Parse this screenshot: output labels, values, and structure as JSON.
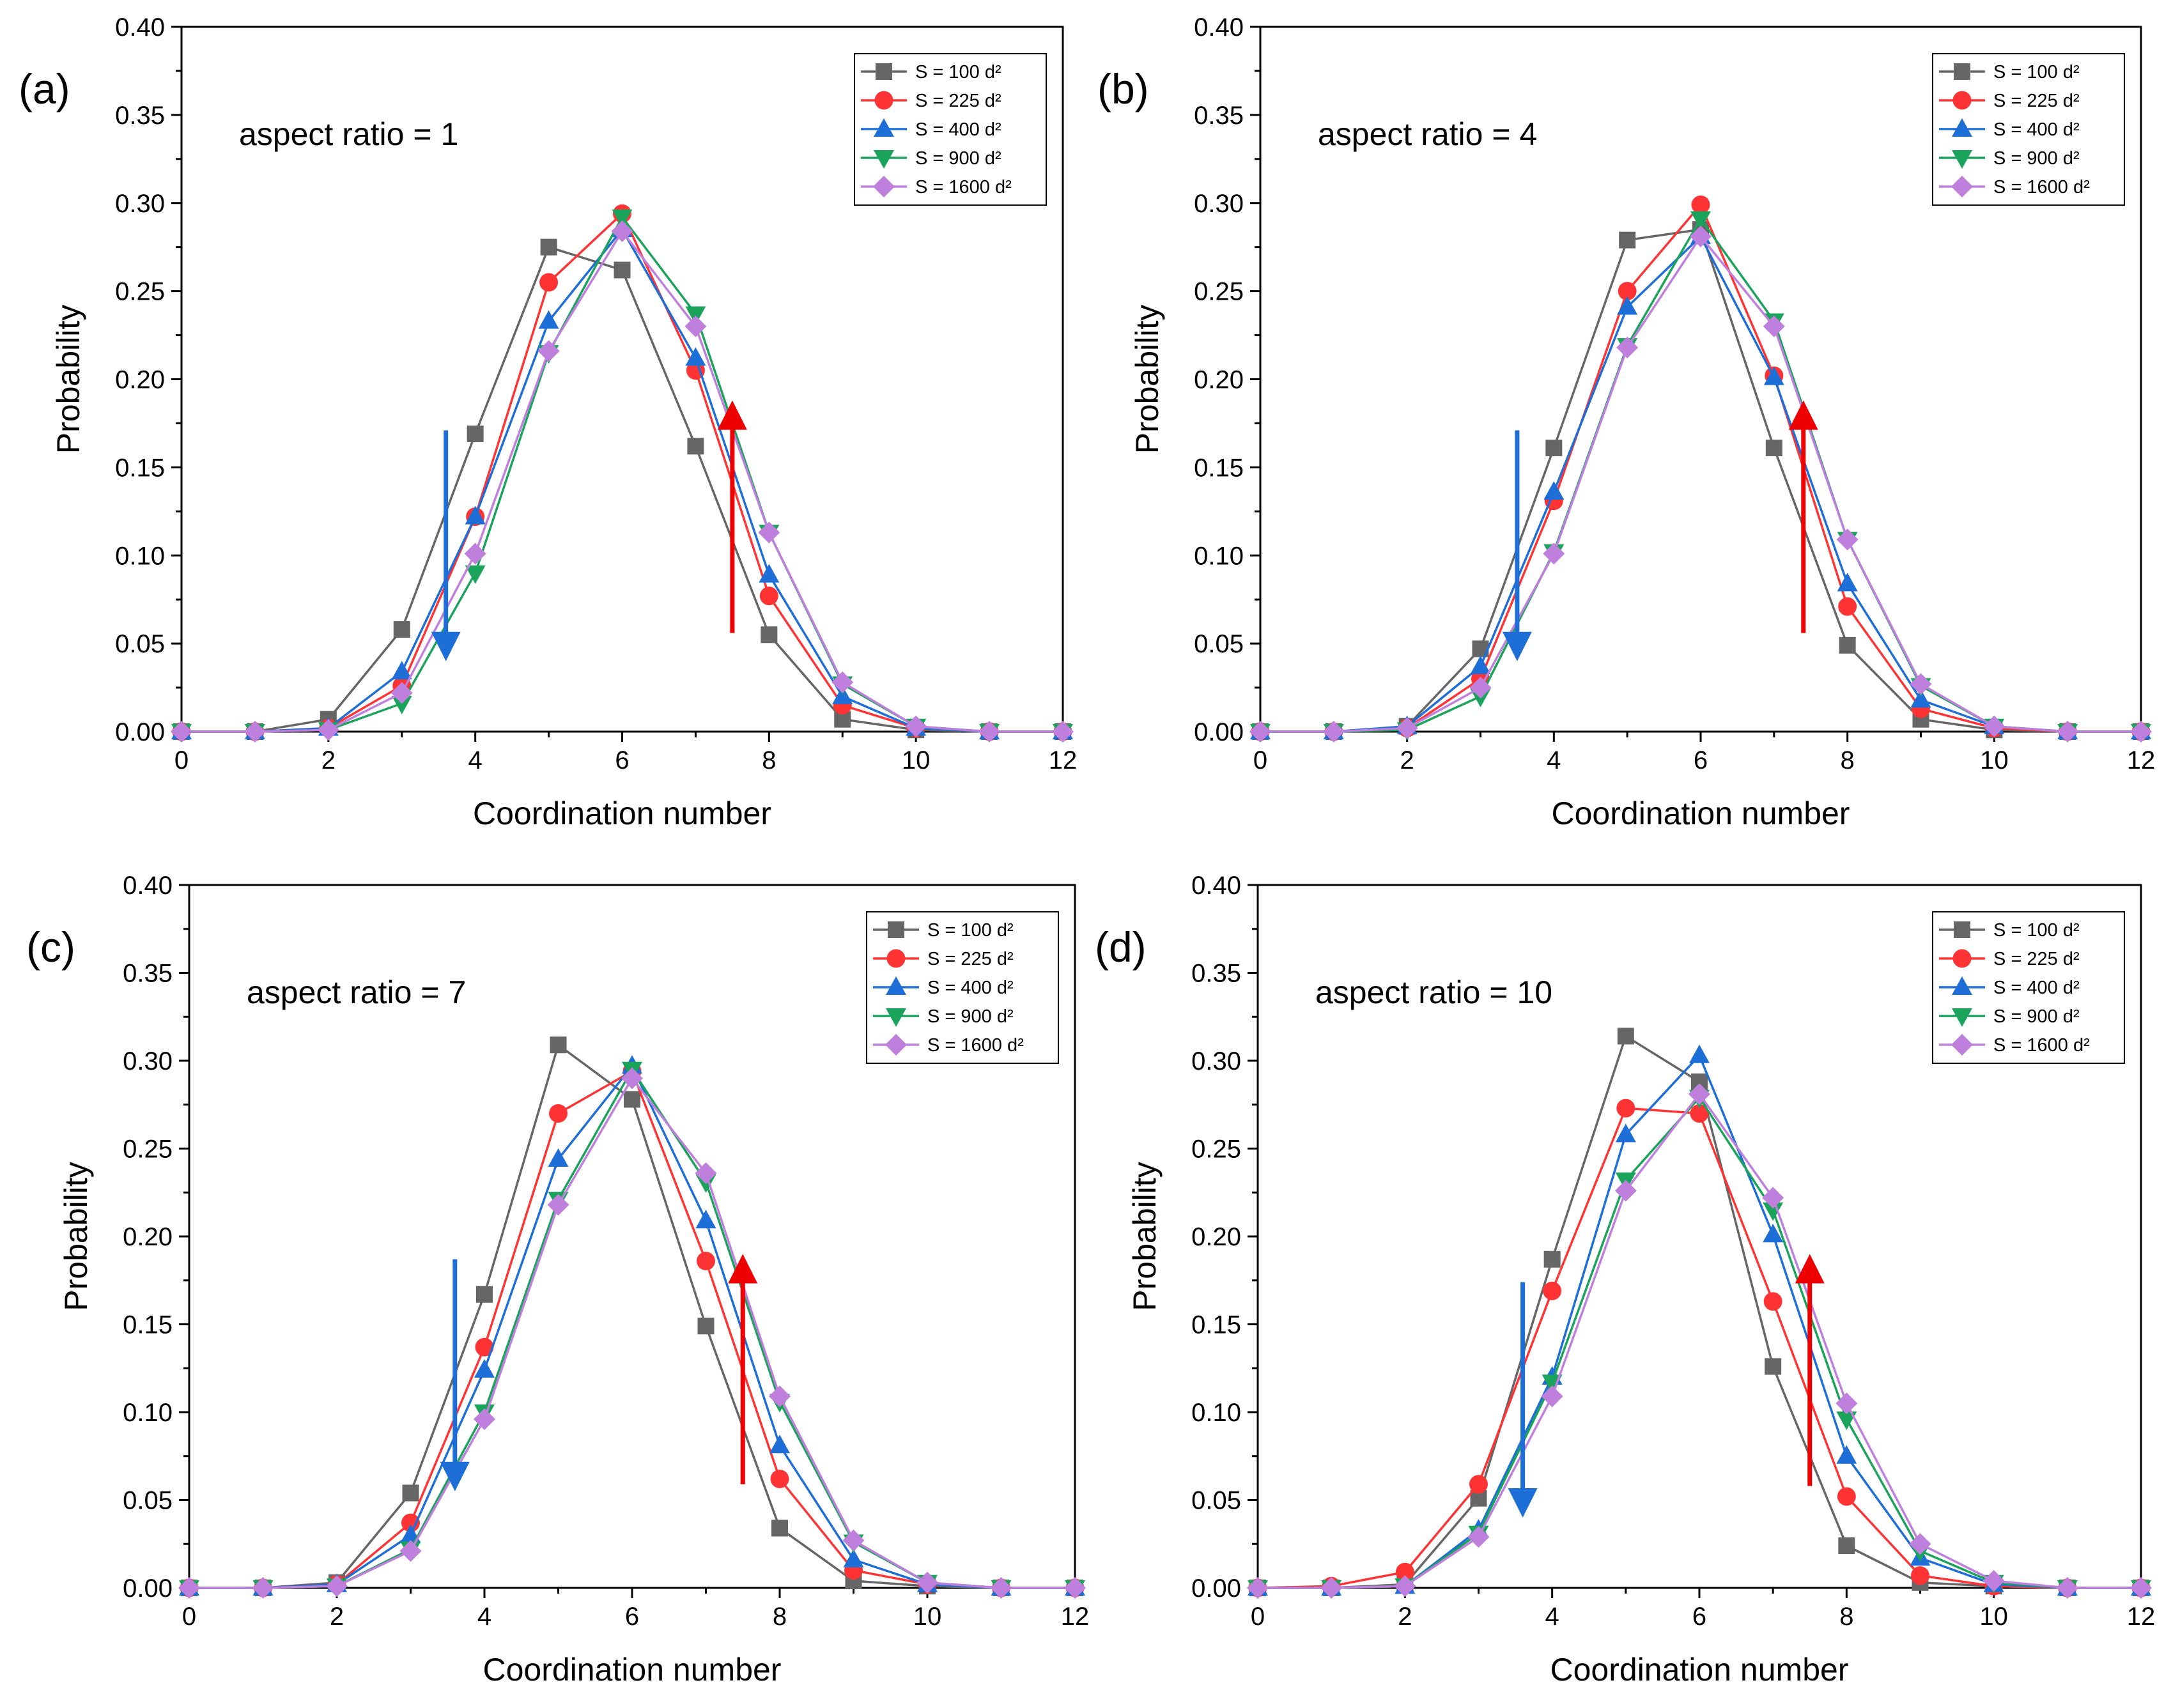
{
  "chart_data": [
    {
      "type": "line",
      "panel_label": "(a)",
      "annotation": "aspect ratio = 1",
      "xlabel": "Coordination number",
      "ylabel": "Probability",
      "xlim": [
        0,
        12
      ],
      "ylim": [
        0,
        0.4
      ],
      "x_ticks": [
        "0",
        "2",
        "4",
        "6",
        "8",
        "10",
        "12"
      ],
      "y_ticks": [
        "0.00",
        "0.05",
        "0.10",
        "0.15",
        "0.20",
        "0.25",
        "0.30",
        "0.35",
        "0.40"
      ],
      "x": [
        0,
        1,
        2,
        3,
        4,
        5,
        6,
        7,
        8,
        9,
        10,
        11,
        12
      ],
      "legend_position": "top-right",
      "series": [
        {
          "name": "S = 100 d²",
          "color": "#666666",
          "marker": "square",
          "values": [
            0,
            0,
            0.007,
            0.058,
            0.169,
            0.275,
            0.262,
            0.162,
            0.055,
            0.007,
            0.001,
            0,
            0
          ]
        },
        {
          "name": "S = 225 d²",
          "color": "#ff3333",
          "marker": "circle",
          "values": [
            0,
            0,
            0.002,
            0.026,
            0.122,
            0.255,
            0.294,
            0.205,
            0.077,
            0.015,
            0.002,
            0,
            0
          ]
        },
        {
          "name": "S = 400 d²",
          "color": "#1e6ed8",
          "marker": "triangle-up",
          "values": [
            0,
            0,
            0.002,
            0.034,
            0.122,
            0.233,
            0.285,
            0.212,
            0.089,
            0.02,
            0.002,
            0,
            0
          ]
        },
        {
          "name": "S = 900 d²",
          "color": "#1aa35b",
          "marker": "triangle-down",
          "values": [
            0,
            0,
            0.001,
            0.016,
            0.09,
            0.215,
            0.292,
            0.237,
            0.113,
            0.027,
            0.003,
            0,
            0
          ]
        },
        {
          "name": "S = 1600 d²",
          "color": "#bf7fdd",
          "marker": "diamond",
          "values": [
            0,
            0,
            0.001,
            0.022,
            0.101,
            0.216,
            0.284,
            0.23,
            0.113,
            0.028,
            0.003,
            0,
            0
          ]
        }
      ],
      "arrows": [
        {
          "direction": "down",
          "color": "#1e6ed8",
          "x": 3.6,
          "y_from": 0.171,
          "y_to": 0.04
        },
        {
          "direction": "up",
          "color": "#ee0000",
          "x": 7.5,
          "y_from": 0.056,
          "y_to": 0.188
        }
      ]
    },
    {
      "type": "line",
      "panel_label": "(b)",
      "annotation": "aspect ratio = 4",
      "xlabel": "Coordination number",
      "ylabel": "Probability",
      "xlim": [
        0,
        12
      ],
      "ylim": [
        0,
        0.4
      ],
      "x_ticks": [
        "0",
        "2",
        "4",
        "6",
        "8",
        "10",
        "12"
      ],
      "y_ticks": [
        "0.00",
        "0.05",
        "0.10",
        "0.15",
        "0.20",
        "0.25",
        "0.30",
        "0.35",
        "0.40"
      ],
      "x": [
        0,
        1,
        2,
        3,
        4,
        5,
        6,
        7,
        8,
        9,
        10,
        11,
        12
      ],
      "legend_position": "top-right",
      "series": [
        {
          "name": "S = 100 d²",
          "color": "#666666",
          "marker": "square",
          "values": [
            0,
            0,
            0.003,
            0.047,
            0.161,
            0.279,
            0.285,
            0.161,
            0.049,
            0.007,
            0.001,
            0,
            0
          ]
        },
        {
          "name": "S = 225 d²",
          "color": "#ff3333",
          "marker": "circle",
          "values": [
            0,
            0,
            0.002,
            0.03,
            0.131,
            0.25,
            0.299,
            0.202,
            0.071,
            0.013,
            0.002,
            0,
            0
          ]
        },
        {
          "name": "S = 400 d²",
          "color": "#1e6ed8",
          "marker": "triangle-up",
          "values": [
            0,
            0,
            0.003,
            0.037,
            0.136,
            0.241,
            0.281,
            0.201,
            0.084,
            0.018,
            0.003,
            0,
            0
          ]
        },
        {
          "name": "S = 900 d²",
          "color": "#1aa35b",
          "marker": "triangle-down",
          "values": [
            0,
            0,
            0.001,
            0.02,
            0.102,
            0.219,
            0.291,
            0.233,
            0.109,
            0.026,
            0.003,
            0,
            0
          ]
        },
        {
          "name": "S = 1600 d²",
          "color": "#bf7fdd",
          "marker": "diamond",
          "values": [
            0,
            0,
            0.002,
            0.025,
            0.101,
            0.218,
            0.281,
            0.23,
            0.109,
            0.027,
            0.003,
            0,
            0
          ]
        }
      ],
      "arrows": [
        {
          "direction": "down",
          "color": "#1e6ed8",
          "x": 3.5,
          "y_from": 0.171,
          "y_to": 0.04
        },
        {
          "direction": "up",
          "color": "#ee0000",
          "x": 7.4,
          "y_from": 0.056,
          "y_to": 0.188
        }
      ]
    },
    {
      "type": "line",
      "panel_label": "(c)",
      "annotation": "aspect ratio = 7",
      "xlabel": "Coordination number",
      "ylabel": "Probability",
      "xlim": [
        0,
        12
      ],
      "ylim": [
        0,
        0.4
      ],
      "x_ticks": [
        "0",
        "2",
        "4",
        "6",
        "8",
        "10",
        "12"
      ],
      "y_ticks": [
        "0.00",
        "0.05",
        "0.10",
        "0.15",
        "0.20",
        "0.25",
        "0.30",
        "0.35",
        "0.40"
      ],
      "x": [
        0,
        1,
        2,
        3,
        4,
        5,
        6,
        7,
        8,
        9,
        10,
        11,
        12
      ],
      "legend_position": "top-right",
      "series": [
        {
          "name": "S = 100 d²",
          "color": "#666666",
          "marker": "square",
          "values": [
            0,
            0,
            0.003,
            0.054,
            0.167,
            0.309,
            0.278,
            0.149,
            0.034,
            0.004,
            0.001,
            0,
            0
          ]
        },
        {
          "name": "S = 225 d²",
          "color": "#ff3333",
          "marker": "circle",
          "values": [
            0,
            0,
            0.002,
            0.037,
            0.137,
            0.27,
            0.294,
            0.186,
            0.062,
            0.01,
            0.002,
            0,
            0
          ]
        },
        {
          "name": "S = 400 d²",
          "color": "#1e6ed8",
          "marker": "triangle-up",
          "values": [
            0,
            0,
            0.002,
            0.03,
            0.124,
            0.244,
            0.297,
            0.209,
            0.081,
            0.016,
            0.002,
            0,
            0
          ]
        },
        {
          "name": "S = 900 d²",
          "color": "#1aa35b",
          "marker": "triangle-down",
          "values": [
            0,
            0,
            0.001,
            0.022,
            0.1,
            0.221,
            0.295,
            0.231,
            0.106,
            0.026,
            0.003,
            0,
            0
          ]
        },
        {
          "name": "S = 1600 d²",
          "color": "#bf7fdd",
          "marker": "diamond",
          "values": [
            0,
            0,
            0.001,
            0.021,
            0.096,
            0.218,
            0.29,
            0.236,
            0.109,
            0.027,
            0.003,
            0,
            0
          ]
        }
      ],
      "arrows": [
        {
          "direction": "down",
          "color": "#1e6ed8",
          "x": 3.6,
          "y_from": 0.187,
          "y_to": 0.055
        },
        {
          "direction": "up",
          "color": "#ee0000",
          "x": 7.5,
          "y_from": 0.059,
          "y_to": 0.19
        }
      ]
    },
    {
      "type": "line",
      "panel_label": "(d)",
      "annotation": "aspect ratio = 10",
      "xlabel": "Coordination number",
      "ylabel": "Probability",
      "xlim": [
        0,
        12
      ],
      "ylim": [
        0,
        0.4
      ],
      "x_ticks": [
        "0",
        "2",
        "4",
        "6",
        "8",
        "10",
        "12"
      ],
      "y_ticks": [
        "0.00",
        "0.05",
        "0.10",
        "0.15",
        "0.20",
        "0.25",
        "0.30",
        "0.35",
        "0.40"
      ],
      "x": [
        0,
        1,
        2,
        3,
        4,
        5,
        6,
        7,
        8,
        9,
        10,
        11,
        12
      ],
      "legend_position": "top-right",
      "series": [
        {
          "name": "S = 100 d²",
          "color": "#666666",
          "marker": "square",
          "values": [
            0,
            0,
            0.002,
            0.051,
            0.187,
            0.314,
            0.288,
            0.126,
            0.024,
            0.003,
            0.001,
            0,
            0
          ]
        },
        {
          "name": "S = 225 d²",
          "color": "#ff3333",
          "marker": "circle",
          "values": [
            0,
            0.001,
            0.009,
            0.059,
            0.169,
            0.273,
            0.27,
            0.163,
            0.052,
            0.007,
            0.001,
            0,
            0
          ]
        },
        {
          "name": "S = 400 d²",
          "color": "#1e6ed8",
          "marker": "triangle-up",
          "values": [
            0,
            0,
            0.001,
            0.033,
            0.12,
            0.258,
            0.303,
            0.201,
            0.075,
            0.017,
            0.002,
            0,
            0
          ]
        },
        {
          "name": "S = 900 d²",
          "color": "#1aa35b",
          "marker": "triangle-down",
          "values": [
            0,
            0,
            0.001,
            0.031,
            0.117,
            0.232,
            0.279,
            0.215,
            0.096,
            0.021,
            0.003,
            0,
            0
          ]
        },
        {
          "name": "S = 1600 d²",
          "color": "#bf7fdd",
          "marker": "diamond",
          "values": [
            0,
            0,
            0.001,
            0.029,
            0.109,
            0.226,
            0.281,
            0.222,
            0.105,
            0.025,
            0.004,
            0,
            0
          ]
        }
      ],
      "arrows": [
        {
          "direction": "down",
          "color": "#1e6ed8",
          "x": 3.6,
          "y_from": 0.174,
          "y_to": 0.04
        },
        {
          "direction": "up",
          "color": "#ee0000",
          "x": 7.5,
          "y_from": 0.058,
          "y_to": 0.19
        }
      ]
    }
  ]
}
